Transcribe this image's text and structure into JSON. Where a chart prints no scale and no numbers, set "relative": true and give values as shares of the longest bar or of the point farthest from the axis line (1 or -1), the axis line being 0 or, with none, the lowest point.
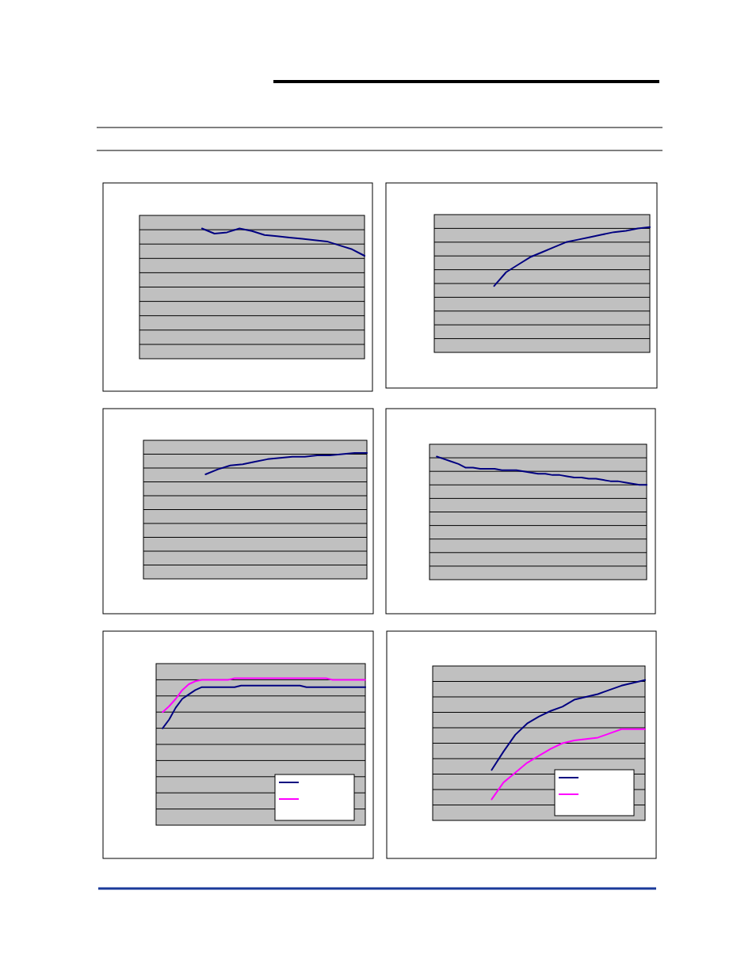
{
  "chart_data": [
    {
      "type": "line",
      "relative": true,
      "grid": "y",
      "categories": [
        null,
        null,
        null,
        null,
        null,
        null,
        null,
        null,
        null,
        null,
        null,
        null,
        null,
        null,
        null,
        null,
        null,
        null,
        null
      ],
      "series": [
        {
          "color": "#000080",
          "values": [
            null,
            null,
            null,
            null,
            null,
            1,
            0.96,
            0.97,
            1,
            0.98,
            0.95,
            0.94,
            0.93,
            0.92,
            0.91,
            0.9,
            0.87,
            0.84,
            0.79
          ]
        }
      ]
    },
    {
      "type": "line",
      "relative": true,
      "grid": "y",
      "categories": [
        null,
        null,
        null,
        null,
        null,
        null,
        null,
        null,
        null,
        null,
        null,
        null,
        null,
        null,
        null,
        null,
        null,
        null,
        null
      ],
      "series": [
        {
          "color": "#000080",
          "values": [
            null,
            null,
            null,
            null,
            null,
            0.53,
            0.64,
            0.7,
            0.76,
            0.8,
            0.84,
            0.88,
            0.9,
            0.92,
            0.94,
            0.96,
            0.97,
            0.99,
            1
          ]
        }
      ]
    },
    {
      "type": "line",
      "relative": true,
      "grid": "y",
      "categories": [
        null,
        null,
        null,
        null,
        null,
        null,
        null,
        null,
        null,
        null,
        null,
        null,
        null,
        null,
        null,
        null,
        null,
        null,
        null
      ],
      "series": [
        {
          "color": "#000080",
          "values": [
            null,
            null,
            null,
            null,
            null,
            0.83,
            0.87,
            0.9,
            0.91,
            0.93,
            0.95,
            0.96,
            0.97,
            0.97,
            0.98,
            0.98,
            0.99,
            1,
            1
          ]
        }
      ]
    },
    {
      "type": "line",
      "relative": true,
      "grid": "y",
      "categories": [
        null,
        null,
        null,
        null,
        null,
        null,
        null,
        null,
        null,
        null,
        null,
        null,
        null,
        null,
        null,
        null,
        null,
        null,
        null,
        null,
        null,
        null,
        null,
        null,
        null,
        null,
        null,
        null,
        null,
        null,
        null
      ],
      "series": [
        {
          "color": "#000080",
          "values": [
            null,
            1,
            0.98,
            0.96,
            0.94,
            0.91,
            0.91,
            0.9,
            0.9,
            0.9,
            0.89,
            0.89,
            0.89,
            0.88,
            0.87,
            0.86,
            0.86,
            0.85,
            0.85,
            0.84,
            0.83,
            0.83,
            0.82,
            0.82,
            0.81,
            0.8,
            0.8,
            0.79,
            0.78,
            0.77,
            0.77
          ]
        }
      ]
    },
    {
      "type": "line",
      "relative": true,
      "grid": "y",
      "categories": [
        null,
        null,
        null,
        null,
        null,
        null,
        null,
        null,
        null,
        null,
        null,
        null,
        null,
        null,
        null,
        null,
        null,
        null,
        null,
        null,
        null,
        null,
        null,
        null,
        null,
        null,
        null,
        null,
        null,
        null,
        null,
        null,
        null
      ],
      "series": [
        {
          "color": "#000080",
          "values": [
            null,
            0.66,
            0.72,
            0.8,
            0.86,
            0.89,
            0.92,
            0.94,
            0.94,
            0.94,
            0.94,
            0.94,
            0.94,
            0.95,
            0.95,
            0.95,
            0.95,
            0.95,
            0.95,
            0.95,
            0.95,
            0.95,
            0.95,
            0.94,
            0.94,
            0.94,
            0.94,
            0.94,
            0.94,
            0.94,
            0.94,
            0.94,
            0.94
          ]
        },
        {
          "color": "#ff00ff",
          "values": [
            null,
            0.77,
            0.81,
            0.86,
            0.92,
            0.96,
            0.98,
            0.99,
            0.99,
            0.99,
            0.99,
            0.99,
            1,
            1,
            1,
            1,
            1,
            1,
            1,
            1,
            1,
            1,
            1,
            1,
            1,
            1,
            1,
            0.99,
            0.99,
            0.99,
            0.99,
            0.99,
            0.99
          ]
        }
      ]
    },
    {
      "type": "line",
      "relative": true,
      "grid": "y",
      "categories": [
        null,
        null,
        null,
        null,
        null,
        null,
        null,
        null,
        null,
        null,
        null,
        null,
        null,
        null,
        null,
        null,
        null,
        null,
        null
      ],
      "series": [
        {
          "color": "#000080",
          "values": [
            null,
            null,
            null,
            null,
            null,
            0.36,
            0.49,
            0.61,
            0.69,
            0.74,
            0.78,
            0.81,
            0.86,
            0.88,
            0.9,
            0.93,
            0.96,
            0.98,
            1
          ]
        },
        {
          "color": "#ff00ff",
          "values": [
            null,
            null,
            null,
            null,
            null,
            0.15,
            0.27,
            0.34,
            0.41,
            0.46,
            0.51,
            0.55,
            0.57,
            0.58,
            0.59,
            0.62,
            0.65,
            0.65,
            0.65
          ]
        }
      ]
    }
  ]
}
